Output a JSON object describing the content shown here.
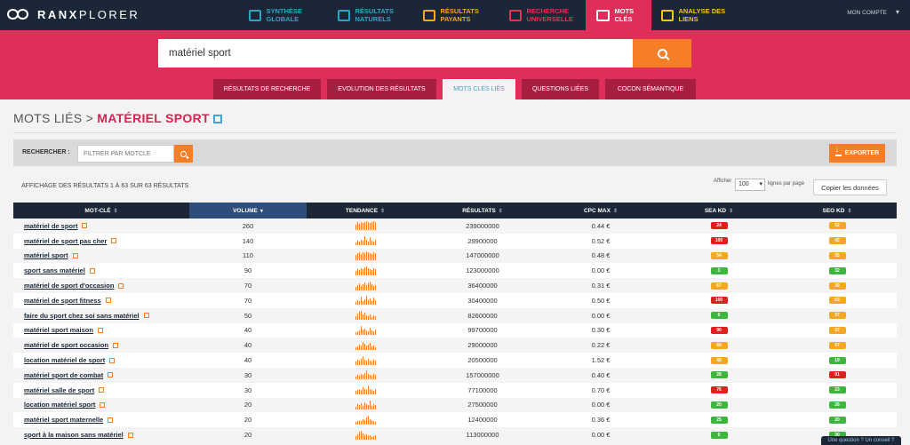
{
  "brand": {
    "logo_bold": "RANX",
    "logo_light": "PLORER"
  },
  "nav": [
    {
      "label": "SYNTHÈSE GLOBALE",
      "icon": "dashboard-icon",
      "color": "#2aa6c8"
    },
    {
      "label": "RÉSULTATS NATURELS",
      "icon": "list-icon",
      "color": "#2aa6c8"
    },
    {
      "label": "RÉSULTATS PAYANTS",
      "icon": "euro-icon",
      "color": "#f5a623"
    },
    {
      "label": "RECHERCHE UNIVERSELLE",
      "icon": "universal-search-icon",
      "color": "#e0334f"
    },
    {
      "label": "MOTS CLÉS",
      "icon": "key-icon",
      "color": "#ffffff"
    },
    {
      "label": "ANALYSE DES LIENS",
      "icon": "link-icon",
      "color": "#f5c518"
    }
  ],
  "account": "MON COMPTE",
  "search": {
    "value": "matériel sport"
  },
  "tabs": [
    "RÉSULTATS DE RECHERCHE",
    "EVOLUTION DES RÉSULTATS",
    "MOTS CLÉS LIÉS",
    "QUESTIONS LIÉES",
    "COCON SÉMANTIQUE"
  ],
  "active_tab": 2,
  "title": {
    "prefix": "MOTS LIÉS > ",
    "keyword": "MATÉRIEL SPORT"
  },
  "filter": {
    "label": "RECHERCHER :",
    "placeholder": "FILTRER PAR MOTCLE"
  },
  "export_label": "EXPORTER",
  "count_info": "AFFICHAGE DES RÉSULTATS 1 À 63 SUR 63 RÉSULTATS",
  "perpage": {
    "before": "Afficher",
    "value": "100",
    "after": "lignes par page"
  },
  "copy_label": "Copier les données",
  "columns": [
    "MOT-CLÉ",
    "VOLUME",
    "TENDANCE",
    "RÉSULTATS",
    "CPC MAX",
    "SEA KD",
    "SEO KD"
  ],
  "sorted_column": 1,
  "colors": {
    "green": "#3cb63c",
    "orange": "#f5a623",
    "red": "#e21f1f",
    "spark": "#f57e27"
  },
  "rows": [
    {
      "kw": "matériel de sport",
      "vol": "260",
      "res": "239000000",
      "cpc": "0.44 €",
      "sea": "24",
      "sea_c": "red",
      "seo": "52",
      "seo_c": "orange",
      "trend": [
        6,
        9,
        7,
        9,
        8,
        9,
        10,
        9,
        8,
        9,
        10,
        9
      ]
    },
    {
      "kw": "matériel de sport pas cher",
      "vol": "140",
      "res": "29900000",
      "cpc": "0.52 €",
      "sea": "100",
      "sea_c": "red",
      "seo": "42",
      "seo_c": "orange",
      "trend": [
        3,
        5,
        4,
        6,
        5,
        10,
        6,
        4,
        9,
        5,
        4,
        6
      ]
    },
    {
      "kw": "matériel sport",
      "vol": "110",
      "res": "147000000",
      "cpc": "0.48 €",
      "sea": "54",
      "sea_c": "orange",
      "seo": "55",
      "seo_c": "orange",
      "trend": [
        6,
        8,
        9,
        7,
        9,
        8,
        10,
        9,
        8,
        7,
        9,
        8
      ]
    },
    {
      "kw": "sport sans matériel",
      "vol": "90",
      "res": "123000000",
      "cpc": "0.00 €",
      "sea": "3",
      "sea_c": "green",
      "seo": "32",
      "seo_c": "green",
      "trend": [
        5,
        7,
        6,
        8,
        7,
        9,
        10,
        8,
        7,
        6,
        8,
        7
      ]
    },
    {
      "kw": "matériel de sport d'occasion",
      "vol": "70",
      "res": "36400000",
      "cpc": "0.31 €",
      "sea": "67",
      "sea_c": "orange",
      "seo": "39",
      "seo_c": "orange",
      "trend": [
        4,
        6,
        8,
        5,
        7,
        9,
        6,
        8,
        10,
        7,
        5,
        6
      ]
    },
    {
      "kw": "matériel de sport fitness",
      "vol": "70",
      "res": "30400000",
      "cpc": "0.50 €",
      "sea": "100",
      "sea_c": "red",
      "seo": "53",
      "seo_c": "orange",
      "trend": [
        3,
        5,
        4,
        9,
        4,
        6,
        10,
        5,
        7,
        4,
        8,
        5
      ]
    },
    {
      "kw": "faire du sport chez soi sans matériel",
      "vol": "50",
      "res": "82600000",
      "cpc": "0.00 €",
      "sea": "0",
      "sea_c": "green",
      "seo": "37",
      "seo_c": "orange",
      "trend": [
        4,
        7,
        9,
        10,
        6,
        8,
        5,
        4,
        6,
        3,
        5,
        4
      ]
    },
    {
      "kw": "matériel sport maison",
      "vol": "40",
      "res": "99700000",
      "cpc": "0.30 €",
      "sea": "90",
      "sea_c": "red",
      "seo": "37",
      "seo_c": "orange",
      "trend": [
        3,
        4,
        5,
        10,
        6,
        7,
        5,
        4,
        8,
        5,
        4,
        6
      ]
    },
    {
      "kw": "matériel de sport occasion",
      "vol": "40",
      "res": "29000000",
      "cpc": "0.22 €",
      "sea": "60",
      "sea_c": "orange",
      "seo": "57",
      "seo_c": "orange",
      "trend": [
        3,
        4,
        6,
        5,
        9,
        7,
        5,
        6,
        8,
        4,
        5,
        3
      ]
    },
    {
      "kw": "location matériel de sport",
      "vol": "40",
      "res": "20500000",
      "cpc": "1.52 €",
      "sea": "48",
      "sea_c": "orange",
      "seo": "19",
      "seo_c": "green",
      "trend": [
        4,
        6,
        5,
        7,
        10,
        6,
        5,
        7,
        5,
        4,
        6,
        5
      ]
    },
    {
      "kw": "matériel sport de combat",
      "vol": "30",
      "res": "157000000",
      "cpc": "0.40 €",
      "sea": "28",
      "sea_c": "green",
      "seo": "91",
      "seo_c": "red",
      "trend": [
        3,
        5,
        4,
        6,
        5,
        7,
        10,
        6,
        5,
        4,
        6,
        5
      ]
    },
    {
      "kw": "matériel salle de sport",
      "vol": "30",
      "res": "77100000",
      "cpc": "0.70 €",
      "sea": "76",
      "sea_c": "red",
      "seo": "23",
      "seo_c": "green",
      "trend": [
        4,
        5,
        6,
        5,
        8,
        6,
        5,
        10,
        6,
        5,
        4,
        6
      ]
    },
    {
      "kw": "location matériel sport",
      "vol": "20",
      "res": "27500000",
      "cpc": "0.00 €",
      "sea": "20",
      "sea_c": "green",
      "seo": "26",
      "seo_c": "green",
      "trend": [
        3,
        6,
        5,
        7,
        4,
        8,
        6,
        5,
        10,
        4,
        6,
        5
      ]
    },
    {
      "kw": "matériel sport maternelle",
      "vol": "20",
      "res": "12400000",
      "cpc": "0.36 €",
      "sea": "25",
      "sea_c": "green",
      "seo": "20",
      "seo_c": "green",
      "trend": [
        3,
        4,
        5,
        4,
        6,
        5,
        8,
        10,
        6,
        5,
        4,
        3
      ]
    },
    {
      "kw": "sport à la maison sans matériel",
      "vol": "20",
      "res": "113000000",
      "cpc": "0.00 €",
      "sea": "0",
      "sea_c": "green",
      "seo": "30",
      "seo_c": "green",
      "trend": [
        4,
        6,
        9,
        10,
        7,
        5,
        6,
        4,
        5,
        3,
        4,
        5
      ]
    }
  ],
  "chat_label": "Une question ? Un conseil ?"
}
